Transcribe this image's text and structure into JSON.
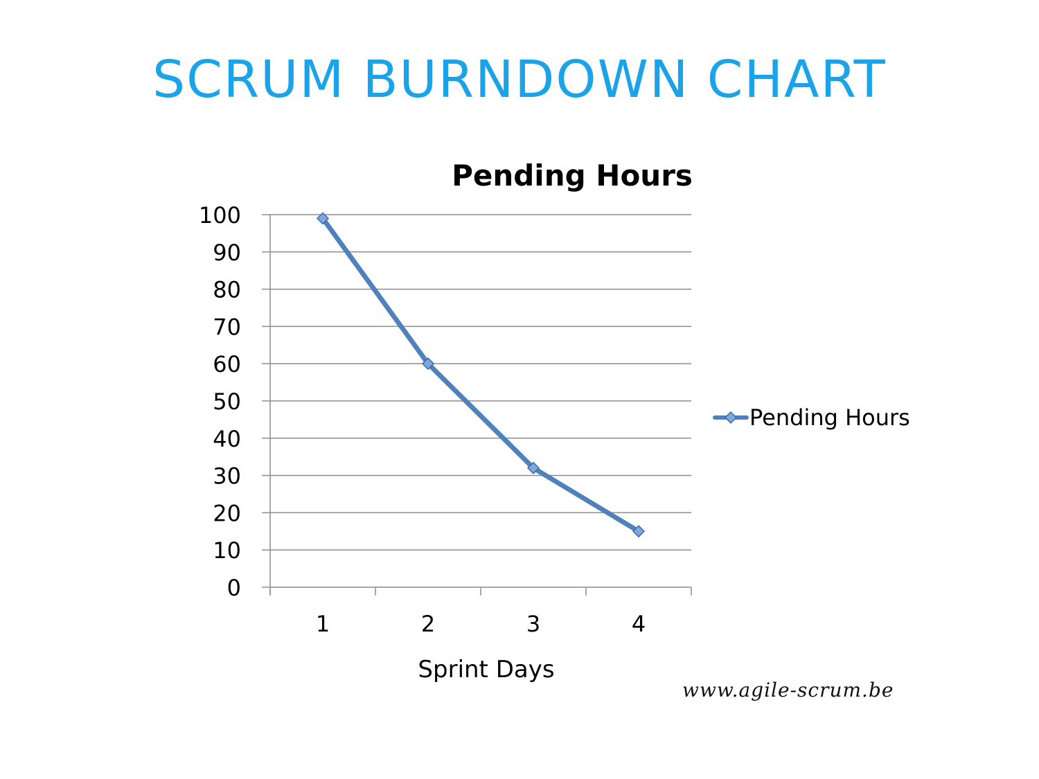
{
  "slide": {
    "title": "SCRUM BURNDOWN CHART",
    "footer": "www.agile-scrum.be",
    "title_color": "#1aa3e8"
  },
  "chart_data": {
    "type": "line",
    "title": "Pending Hours",
    "xlabel": "Sprint Days",
    "ylabel": "",
    "categories": [
      "1",
      "2",
      "3",
      "4"
    ],
    "series": [
      {
        "name": "Pending Hours",
        "values": [
          99,
          60,
          32,
          15
        ],
        "color": "#4f81bd",
        "marker": "diamond"
      }
    ],
    "ylim": [
      0,
      100
    ],
    "yticks": [
      0,
      10,
      20,
      30,
      40,
      50,
      60,
      70,
      80,
      90,
      100
    ],
    "grid": true,
    "legend": "right"
  }
}
